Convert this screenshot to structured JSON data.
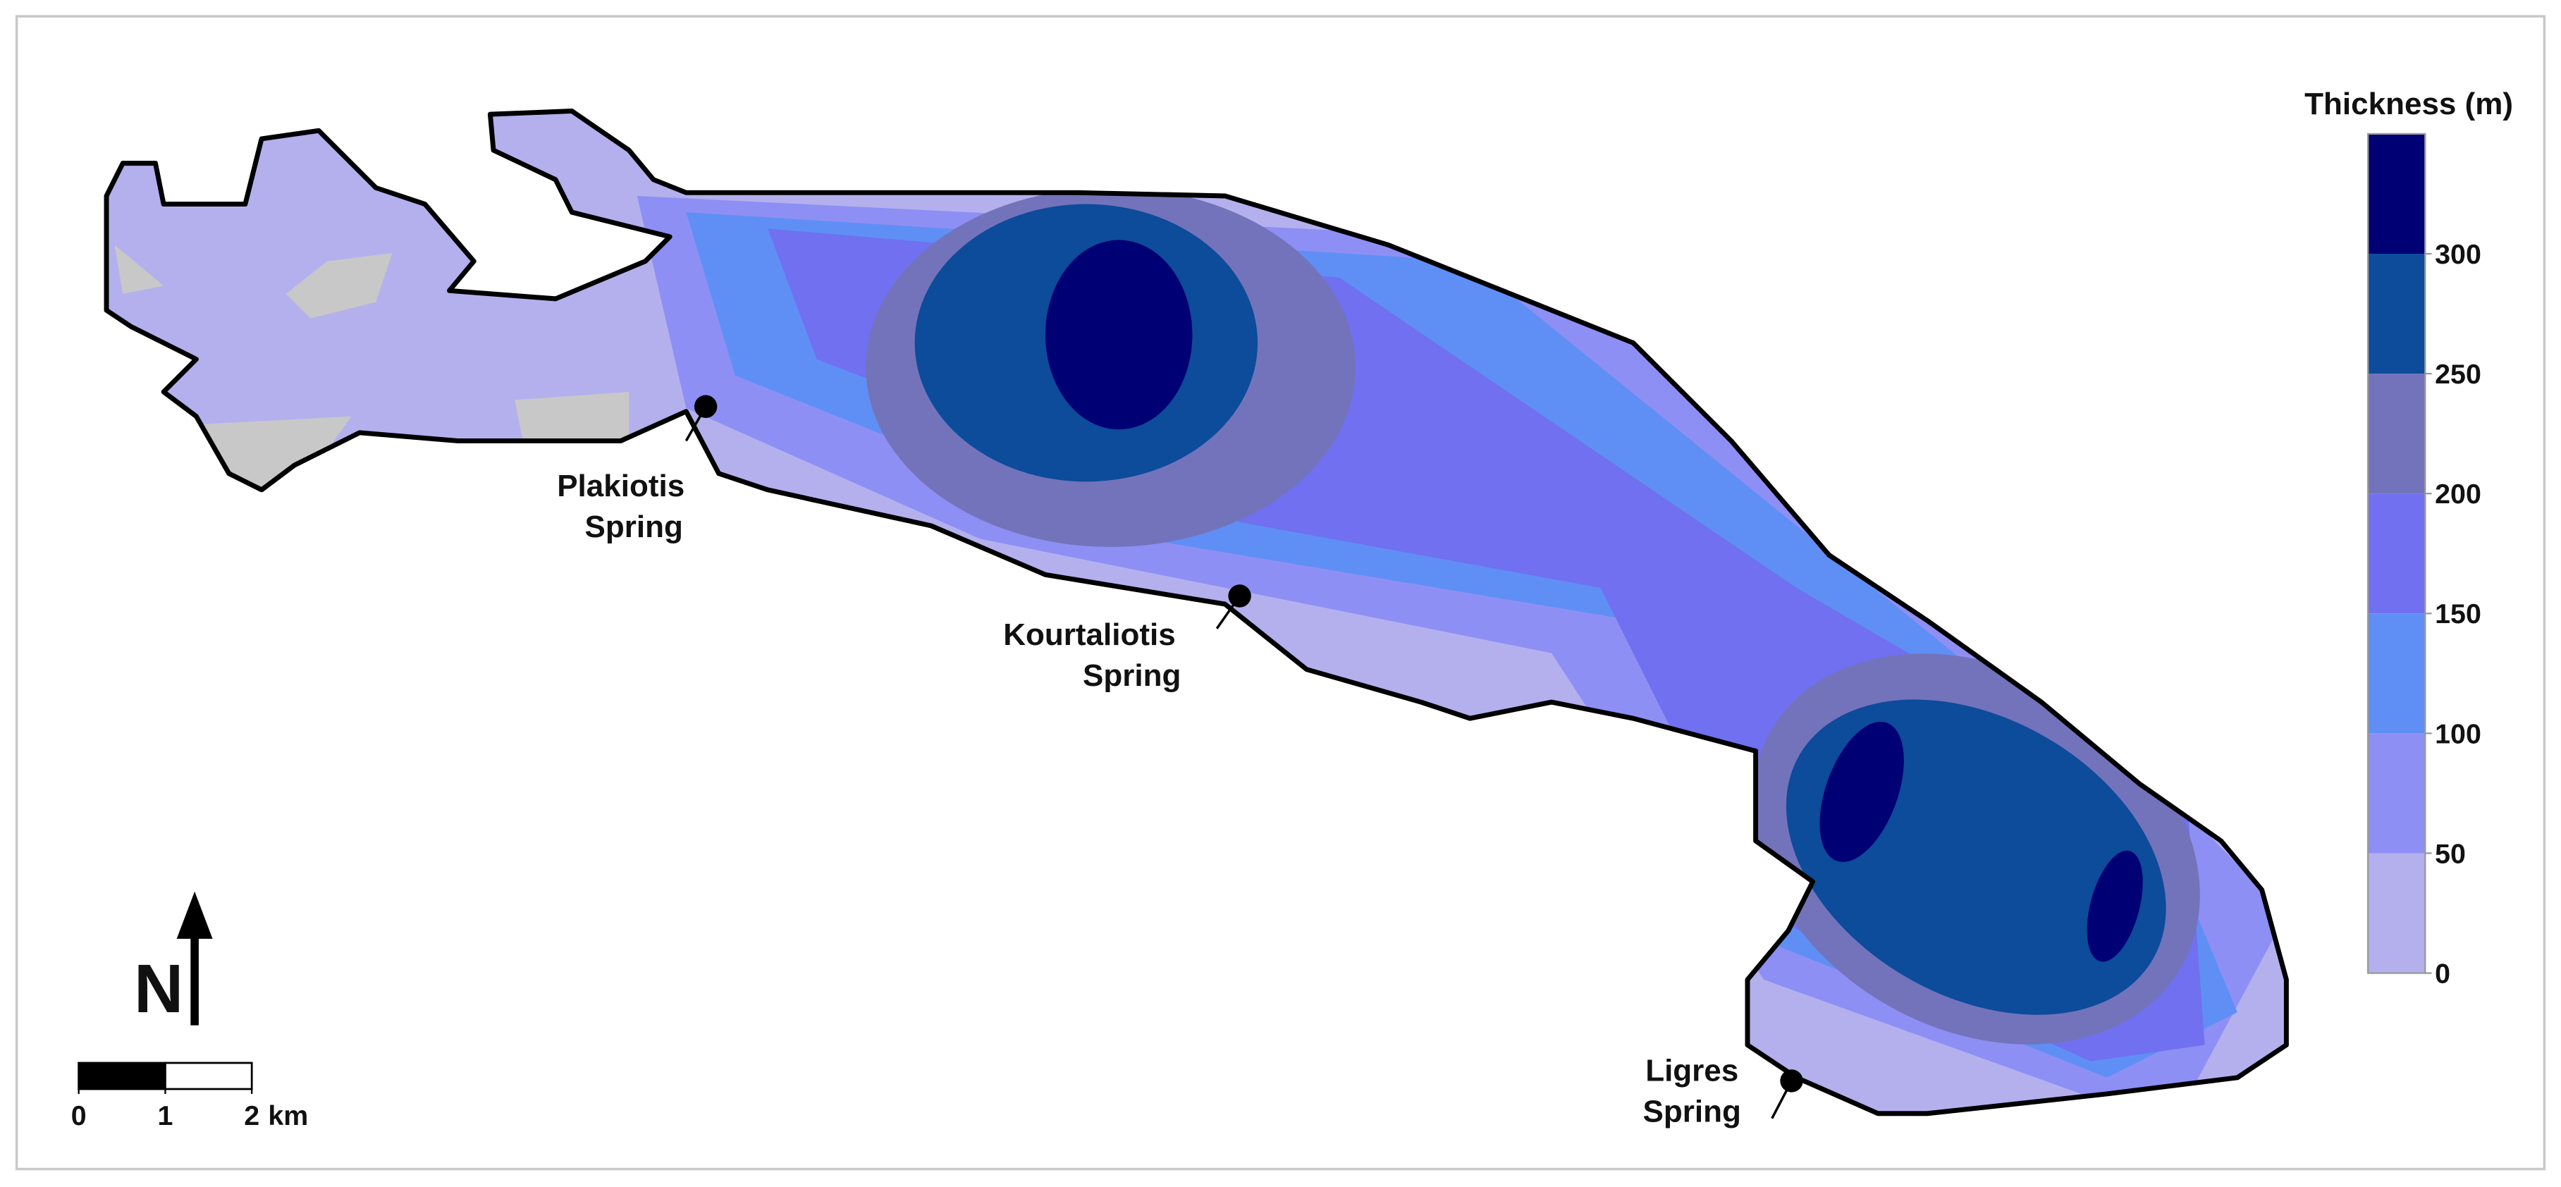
{
  "legend": {
    "title": "Thickness (m)",
    "lim": [
      0,
      350
    ],
    "ticks": [
      0,
      50,
      100,
      150,
      200,
      250,
      300
    ],
    "colors": [
      "#b4b0ee",
      "#8e8ff4",
      "#5f8ff5",
      "#7070f0",
      "#7373bb",
      "#0d4b9b",
      "#000075"
    ]
  },
  "springs": [
    {
      "lines": [
        "Plakiotis",
        "Spring"
      ]
    },
    {
      "lines": [
        "Kourtaliotis",
        "Spring"
      ]
    },
    {
      "lines": [
        "Ligres",
        "Spring"
      ]
    }
  ],
  "north_arrow": "N",
  "scale_bar": {
    "ticks": [
      0,
      1,
      2
    ],
    "unit": "km"
  }
}
